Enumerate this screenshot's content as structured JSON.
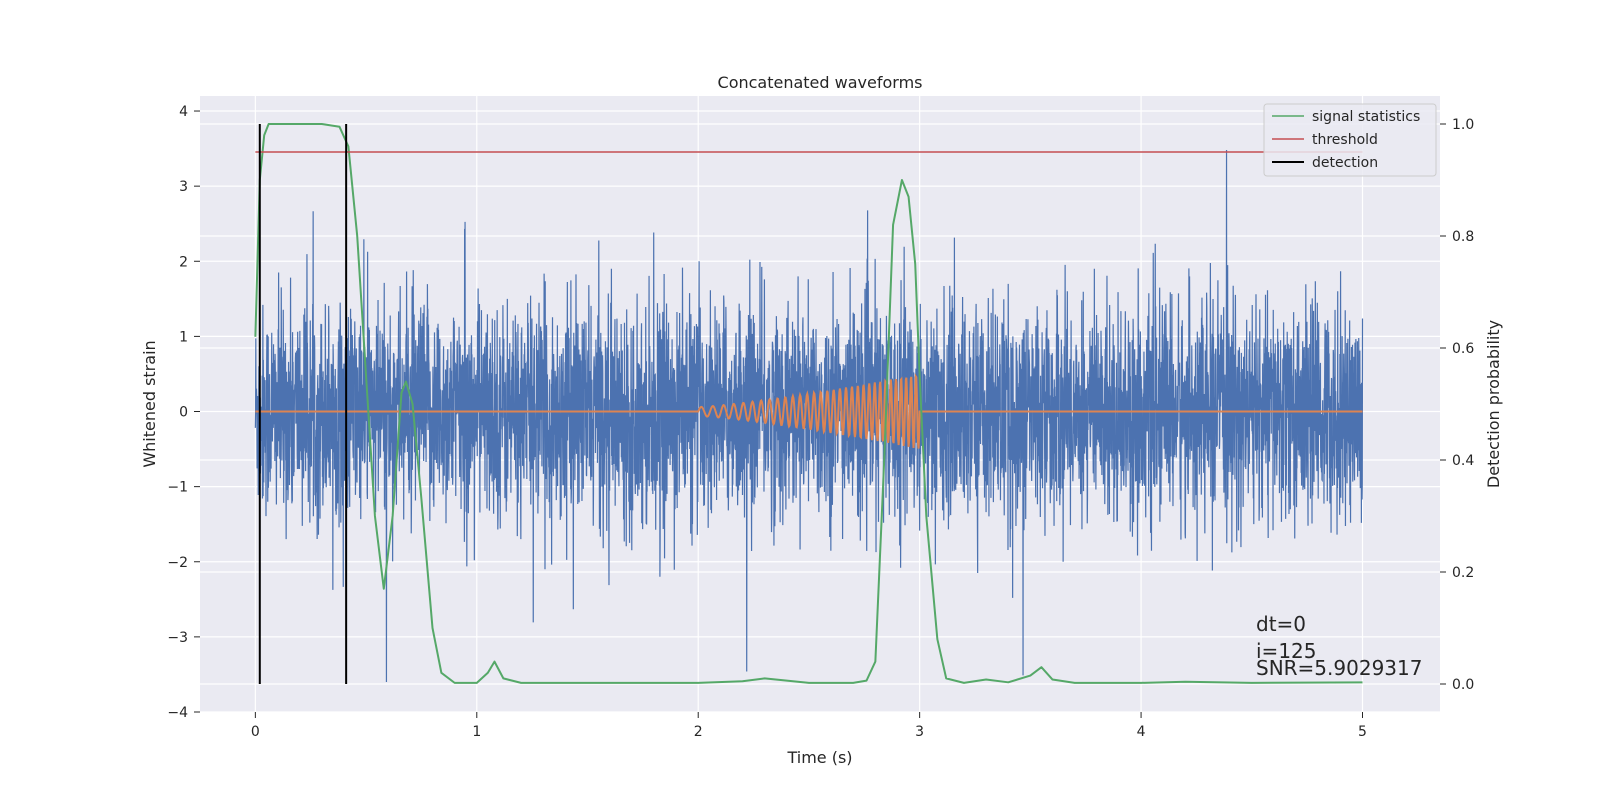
{
  "chart_data": {
    "type": "line",
    "title": "Concatenated waveforms",
    "xlabel": "Time (s)",
    "ylabel_left": "Whitened strain",
    "ylabel_right": "Detection probability",
    "xlim": [
      -0.25,
      5.35
    ],
    "ylim_left": [
      -4.0,
      4.2
    ],
    "ylim_right": [
      -0.05,
      1.05
    ],
    "xticks": [
      0,
      1,
      2,
      3,
      4,
      5
    ],
    "yticks_left": [
      -4,
      -3,
      -2,
      -1,
      0,
      1,
      2,
      3,
      4
    ],
    "yticks_right": [
      0.0,
      0.2,
      0.4,
      0.6,
      0.8,
      1.0
    ],
    "ytick_labels_right": [
      "0.0",
      "0.2",
      "0.4",
      "0.6",
      "0.8",
      "1.0"
    ],
    "grid": true,
    "legend_position": "top-right",
    "series": [
      {
        "name": "",
        "axis": "left",
        "kind": "noise",
        "color": "#4c72b0",
        "x_range": [
          0,
          5
        ],
        "description_values": {
          "typical_amplitude": 0.7,
          "max": 3.8,
          "min": -3.6
        }
      },
      {
        "name": "",
        "axis": "left",
        "kind": "chirp",
        "color": "#dd8452",
        "x_range": [
          0,
          5
        ],
        "chirp_start": 2.0,
        "chirp_end": 3.0,
        "chirp_max_amplitude": 0.5
      },
      {
        "name": "signal statistics",
        "axis": "right",
        "color": "#55a868",
        "x": [
          0,
          0.02,
          0.04,
          0.06,
          0.1,
          0.2,
          0.3,
          0.38,
          0.42,
          0.46,
          0.5,
          0.54,
          0.58,
          0.62,
          0.66,
          0.68,
          0.71,
          0.75,
          0.8,
          0.84,
          0.9,
          1.0,
          1.05,
          1.08,
          1.12,
          1.2,
          1.5,
          2.0,
          2.2,
          2.3,
          2.5,
          2.7,
          2.76,
          2.8,
          2.84,
          2.88,
          2.92,
          2.95,
          2.98,
          3.0,
          3.03,
          3.08,
          3.12,
          3.2,
          3.3,
          3.4,
          3.5,
          3.55,
          3.6,
          3.7,
          4.0,
          4.2,
          4.5,
          5.0
        ],
        "y": [
          0.62,
          0.9,
          0.98,
          1.0,
          1.0,
          1.0,
          1.0,
          0.995,
          0.96,
          0.8,
          0.55,
          0.3,
          0.17,
          0.3,
          0.52,
          0.54,
          0.5,
          0.33,
          0.1,
          0.02,
          0.002,
          0.002,
          0.02,
          0.04,
          0.01,
          0.002,
          0.002,
          0.002,
          0.005,
          0.01,
          0.002,
          0.002,
          0.006,
          0.04,
          0.4,
          0.82,
          0.9,
          0.87,
          0.75,
          0.55,
          0.3,
          0.08,
          0.01,
          0.002,
          0.008,
          0.003,
          0.015,
          0.03,
          0.008,
          0.002,
          0.002,
          0.004,
          0.002,
          0.003
        ]
      },
      {
        "name": "threshold",
        "axis": "right",
        "color": "#c44e52",
        "x": [
          0,
          5
        ],
        "y": [
          0.95,
          0.95
        ]
      },
      {
        "name": "detection",
        "axis": "right",
        "color": "#000000",
        "vertical_lines_x": [
          0.02,
          0.41
        ],
        "y_range": [
          0.0,
          1.0
        ]
      }
    ],
    "annotations": [
      "dt=0",
      "i=125",
      "SNR=5.9029317"
    ]
  }
}
